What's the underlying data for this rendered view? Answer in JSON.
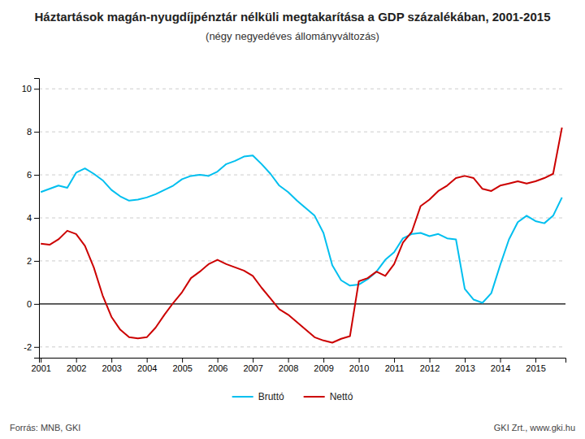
{
  "chart_data": {
    "type": "line",
    "title": "Háztartások magán-nyugdíjpénztár nélküli megtakarítása a GDP százalékában, 2001-2015",
    "subtitle": "(négy negyedéves állományváltozás)",
    "annotations": [
      "Forrás: MNB, GKI",
      "GKI Zrt., www.gki.hu"
    ],
    "x": [
      2001,
      2001.25,
      2001.5,
      2001.75,
      2002,
      2002.25,
      2002.5,
      2002.75,
      2003,
      2003.25,
      2003.5,
      2003.75,
      2004,
      2004.25,
      2004.5,
      2004.75,
      2005,
      2005.25,
      2005.5,
      2005.75,
      2006,
      2006.25,
      2006.5,
      2006.75,
      2007,
      2007.25,
      2007.5,
      2007.75,
      2008,
      2008.25,
      2008.5,
      2008.75,
      2009,
      2009.25,
      2009.5,
      2009.75,
      2010,
      2010.25,
      2010.5,
      2010.75,
      2011,
      2011.25,
      2011.5,
      2011.75,
      2012,
      2012.25,
      2012.5,
      2012.75,
      2013,
      2013.25,
      2013.5,
      2013.75,
      2014,
      2014.25,
      2014.5,
      2014.75,
      2015,
      2015.25,
      2015.5,
      2015.75
    ],
    "series": [
      {
        "name": "Bruttó",
        "color": "#00BFEF",
        "values": [
          5.2,
          5.35,
          5.5,
          5.4,
          6.1,
          6.3,
          6.05,
          5.75,
          5.3,
          5.0,
          4.8,
          4.85,
          4.95,
          5.1,
          5.3,
          5.5,
          5.8,
          5.95,
          6.0,
          5.95,
          6.15,
          6.5,
          6.65,
          6.85,
          6.9,
          6.5,
          6.05,
          5.5,
          5.2,
          4.8,
          4.45,
          4.1,
          3.3,
          1.8,
          1.1,
          0.85,
          0.9,
          1.15,
          1.5,
          2.05,
          2.4,
          3.05,
          3.25,
          3.3,
          3.15,
          3.25,
          3.05,
          3.0,
          0.7,
          0.2,
          0.05,
          0.5,
          1.8,
          3.0,
          3.8,
          4.1,
          3.85,
          3.75,
          4.1,
          4.95
        ]
      },
      {
        "name": "Nettó",
        "color": "#CC0000",
        "values": [
          2.8,
          2.75,
          3.0,
          3.4,
          3.25,
          2.7,
          1.7,
          0.4,
          -0.6,
          -1.2,
          -1.55,
          -1.6,
          -1.55,
          -1.1,
          -0.5,
          0.05,
          0.55,
          1.2,
          1.5,
          1.85,
          2.05,
          1.85,
          1.7,
          1.55,
          1.3,
          0.75,
          0.25,
          -0.25,
          -0.5,
          -0.85,
          -1.2,
          -1.55,
          -1.7,
          -1.8,
          -1.62,
          -1.5,
          1.05,
          1.2,
          1.5,
          1.3,
          1.85,
          2.85,
          3.35,
          4.55,
          4.85,
          5.25,
          5.5,
          5.85,
          5.95,
          5.85,
          5.35,
          5.25,
          5.5,
          5.6,
          5.7,
          5.6,
          5.7,
          5.85,
          6.05,
          8.2
        ]
      }
    ],
    "xlim": [
      2000.95,
      2015.85
    ],
    "xticks": [
      2001,
      2002,
      2003,
      2004,
      2005,
      2006,
      2007,
      2008,
      2009,
      2010,
      2011,
      2012,
      2013,
      2014,
      2015
    ],
    "ylim": [
      -2.5,
      10.5
    ],
    "yticks": [
      -2,
      0,
      2,
      4,
      6,
      8,
      10
    ],
    "grid": true,
    "legend": "bottom"
  }
}
